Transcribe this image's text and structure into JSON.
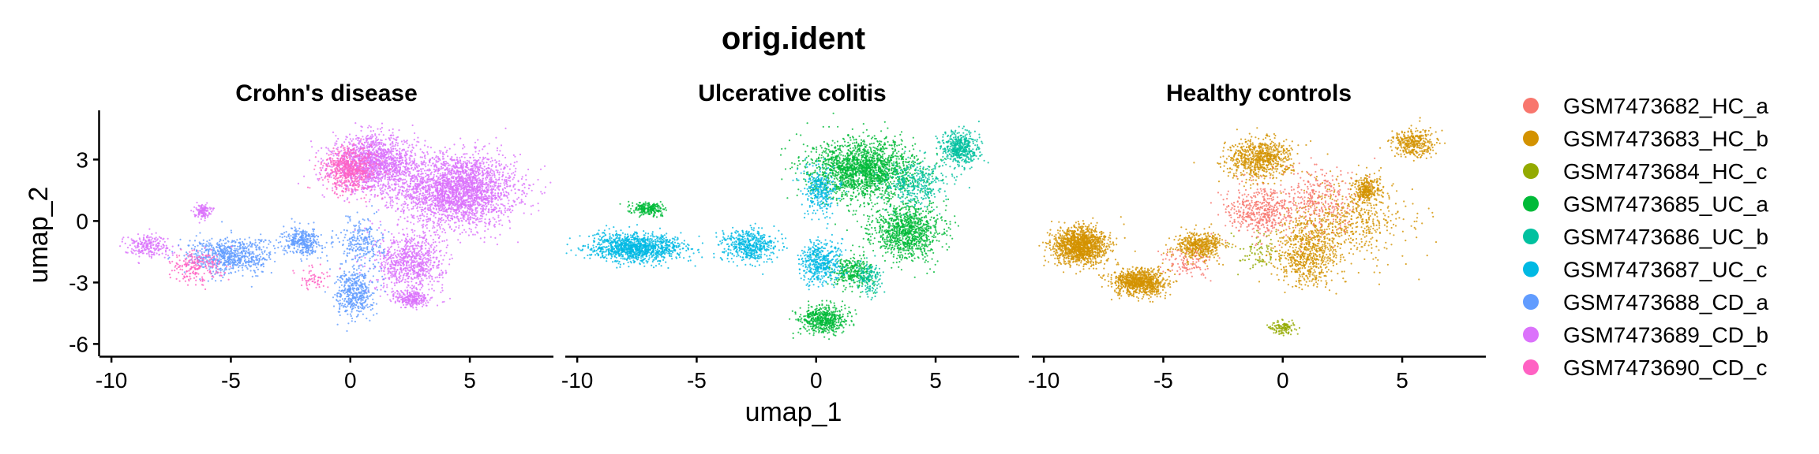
{
  "chart_data": {
    "type": "scatter",
    "title": "orig.ident",
    "xlabel": "umap_1",
    "ylabel": "umap_2",
    "xlim": [
      -10.5,
      8.5
    ],
    "ylim": [
      -6.6,
      5.4
    ],
    "x_ticks": [
      {
        "value": -10,
        "label": "-10"
      },
      {
        "value": -5,
        "label": "-5"
      },
      {
        "value": 0,
        "label": "0"
      },
      {
        "value": 5,
        "label": "5"
      }
    ],
    "y_ticks": [
      {
        "value": 3,
        "label": "3"
      },
      {
        "value": 0,
        "label": "0"
      },
      {
        "value": -3,
        "label": "-3"
      },
      {
        "value": -6,
        "label": "-6"
      }
    ],
    "grid": false,
    "legend_position": "right",
    "legend": [
      {
        "name": "GSM7473682_HC_a",
        "color": "#F8766D"
      },
      {
        "name": "GSM7473683_HC_b",
        "color": "#D39200"
      },
      {
        "name": "GSM7473684_HC_c",
        "color": "#93AA00"
      },
      {
        "name": "GSM7473685_UC_a",
        "color": "#00BA38"
      },
      {
        "name": "GSM7473686_UC_b",
        "color": "#00C19F"
      },
      {
        "name": "GSM7473687_UC_c",
        "color": "#00B9E3"
      },
      {
        "name": "GSM7473688_CD_a",
        "color": "#619CFF"
      },
      {
        "name": "GSM7473689_CD_b",
        "color": "#DB72FB"
      },
      {
        "name": "GSM7473690_CD_c",
        "color": "#FF61C3"
      }
    ],
    "panels": [
      {
        "title": "Crohn's disease",
        "series": [
          {
            "name": "GSM7473689_CD_b",
            "blobs": [
              {
                "x": 4.5,
                "y": 1.5,
                "sx": 2.2,
                "sy": 1.6,
                "n": 2600
              },
              {
                "x": 1.0,
                "y": 2.8,
                "sx": 1.6,
                "sy": 1.2,
                "n": 1500
              },
              {
                "x": 2.5,
                "y": -2.0,
                "sx": 1.3,
                "sy": 1.3,
                "n": 800
              },
              {
                "x": 2.6,
                "y": -3.8,
                "sx": 0.6,
                "sy": 0.4,
                "n": 250
              },
              {
                "x": -6.2,
                "y": 0.5,
                "sx": 0.3,
                "sy": 0.3,
                "n": 120
              },
              {
                "x": -8.5,
                "y": -1.2,
                "sx": 0.9,
                "sy": 0.5,
                "n": 220
              }
            ]
          },
          {
            "name": "GSM7473688_CD_a",
            "blobs": [
              {
                "x": -5.0,
                "y": -1.7,
                "sx": 1.6,
                "sy": 0.8,
                "n": 700
              },
              {
                "x": -2.0,
                "y": -1.0,
                "sx": 0.7,
                "sy": 0.6,
                "n": 350
              },
              {
                "x": 0.2,
                "y": -3.5,
                "sx": 0.7,
                "sy": 1.1,
                "n": 450
              },
              {
                "x": 0.5,
                "y": -1.0,
                "sx": 0.8,
                "sy": 1.0,
                "n": 250
              }
            ]
          },
          {
            "name": "GSM7473690_CD_c",
            "blobs": [
              {
                "x": 0.0,
                "y": 2.5,
                "sx": 1.0,
                "sy": 1.0,
                "n": 600
              },
              {
                "x": -6.5,
                "y": -2.2,
                "sx": 1.0,
                "sy": 0.7,
                "n": 220
              },
              {
                "x": -1.5,
                "y": -2.8,
                "sx": 0.6,
                "sy": 0.5,
                "n": 60
              }
            ]
          }
        ]
      },
      {
        "title": "Ulcerative colitis",
        "series": [
          {
            "name": "GSM7473685_UC_a",
            "blobs": [
              {
                "x": 2.0,
                "y": 2.5,
                "sx": 2.0,
                "sy": 1.3,
                "n": 1900
              },
              {
                "x": 3.8,
                "y": -0.5,
                "sx": 1.3,
                "sy": 1.2,
                "n": 1000
              },
              {
                "x": 0.3,
                "y": -4.8,
                "sx": 0.9,
                "sy": 0.6,
                "n": 550
              },
              {
                "x": -7.0,
                "y": 0.6,
                "sx": 0.6,
                "sy": 0.3,
                "n": 220
              },
              {
                "x": 1.5,
                "y": -2.5,
                "sx": 0.8,
                "sy": 0.7,
                "n": 300
              }
            ]
          },
          {
            "name": "GSM7473686_UC_b",
            "blobs": [
              {
                "x": 6.0,
                "y": 3.5,
                "sx": 0.7,
                "sy": 0.8,
                "n": 500
              },
              {
                "x": 4.2,
                "y": 1.8,
                "sx": 1.2,
                "sy": 1.0,
                "n": 350
              },
              {
                "x": 2.2,
                "y": -2.8,
                "sx": 0.5,
                "sy": 0.8,
                "n": 150
              }
            ]
          },
          {
            "name": "GSM7473687_UC_c",
            "blobs": [
              {
                "x": -7.5,
                "y": -1.3,
                "sx": 1.8,
                "sy": 0.6,
                "n": 1200
              },
              {
                "x": -2.8,
                "y": -1.2,
                "sx": 1.0,
                "sy": 0.7,
                "n": 500
              },
              {
                "x": 0.2,
                "y": -2.0,
                "sx": 0.8,
                "sy": 1.0,
                "n": 450
              },
              {
                "x": 0.2,
                "y": 1.5,
                "sx": 0.7,
                "sy": 1.0,
                "n": 300
              }
            ]
          }
        ]
      },
      {
        "title": "Healthy controls",
        "series": [
          {
            "name": "GSM7473683_HC_b",
            "blobs": [
              {
                "x": -8.5,
                "y": -1.2,
                "sx": 1.0,
                "sy": 0.8,
                "n": 1400
              },
              {
                "x": -6.0,
                "y": -3.0,
                "sx": 1.0,
                "sy": 0.6,
                "n": 900
              },
              {
                "x": -1.0,
                "y": 3.0,
                "sx": 1.2,
                "sy": 0.9,
                "n": 750
              },
              {
                "x": 3.5,
                "y": 1.5,
                "sx": 0.5,
                "sy": 0.6,
                "n": 300
              },
              {
                "x": 5.5,
                "y": 3.8,
                "sx": 0.8,
                "sy": 0.6,
                "n": 350
              },
              {
                "x": -3.5,
                "y": -1.2,
                "sx": 0.9,
                "sy": 0.6,
                "n": 500
              },
              {
                "x": 1.0,
                "y": -1.5,
                "sx": 1.2,
                "sy": 1.5,
                "n": 700
              },
              {
                "x": 3.0,
                "y": 0.0,
                "sx": 2.2,
                "sy": 1.8,
                "n": 500
              }
            ]
          },
          {
            "name": "GSM7473682_HC_a",
            "blobs": [
              {
                "x": -1.0,
                "y": 0.5,
                "sx": 1.2,
                "sy": 1.0,
                "n": 450
              },
              {
                "x": 1.5,
                "y": 1.0,
                "sx": 1.5,
                "sy": 1.5,
                "n": 300
              },
              {
                "x": -4.0,
                "y": -2.0,
                "sx": 1.0,
                "sy": 0.6,
                "n": 100
              }
            ]
          },
          {
            "name": "GSM7473684_HC_c",
            "blobs": [
              {
                "x": 0.0,
                "y": -5.2,
                "sx": 0.5,
                "sy": 0.3,
                "n": 120
              },
              {
                "x": -1.0,
                "y": -1.5,
                "sx": 0.8,
                "sy": 0.8,
                "n": 80
              }
            ]
          }
        ]
      }
    ]
  }
}
